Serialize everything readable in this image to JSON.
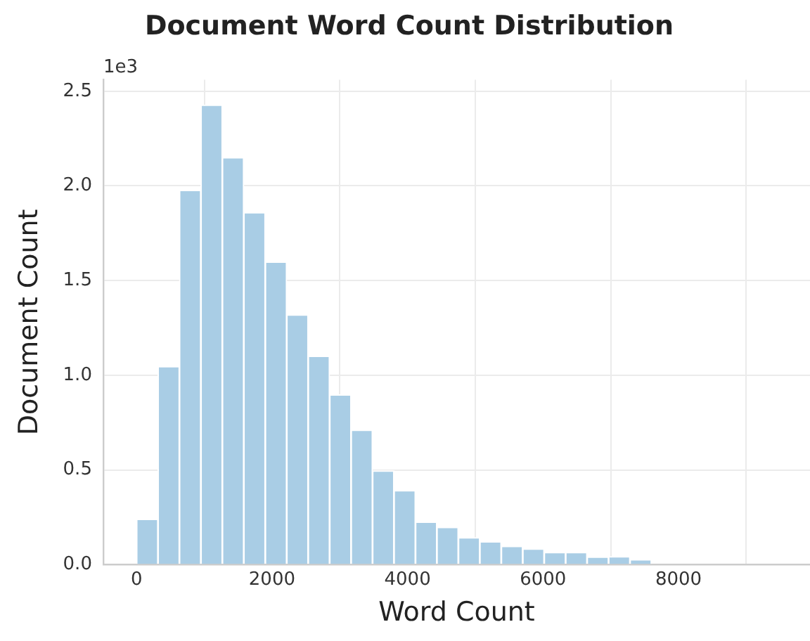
{
  "chart_data": {
    "type": "histogram",
    "title": "Document Word Count Distribution",
    "xlabel": "Word Count",
    "ylabel": "Document Count",
    "annotations": [
      "1e3"
    ],
    "bins": [
      0,
      317,
      633,
      950,
      1267,
      1583,
      1900,
      2217,
      2533,
      2850,
      3167,
      3483,
      3800,
      4117,
      4433,
      4750,
      5067,
      5383,
      5700,
      6017,
      6333,
      6650,
      6967,
      7283,
      7600,
      7917,
      8233,
      8550,
      8867,
      9183,
      9500
    ],
    "values": [
      0.24,
      1.046,
      1.977,
      2.427,
      2.15,
      1.859,
      1.598,
      1.319,
      1.101,
      0.897,
      0.71,
      0.495,
      0.391,
      0.225,
      0.197,
      0.142,
      0.121,
      0.097,
      0.083,
      0.064,
      0.064,
      0.04,
      0.042,
      0.026,
      null,
      null,
      null,
      null,
      null,
      null
    ],
    "color": "#a9cde5",
    "xlim": [
      -490,
      9940
    ],
    "ylim": [
      0,
      2.56
    ],
    "xticks": [
      0,
      2000,
      4000,
      6000,
      8000
    ],
    "yticks": [
      {
        "value": 0,
        "label": "0.0"
      },
      {
        "value": 0.5,
        "label": "0.5"
      },
      {
        "value": 1,
        "label": "1.0"
      },
      {
        "value": 1.5,
        "label": "1.5"
      },
      {
        "value": 2,
        "label": "2.0"
      },
      {
        "value": 2.5,
        "label": "2.5"
      }
    ],
    "grid": true,
    "legend": false
  }
}
